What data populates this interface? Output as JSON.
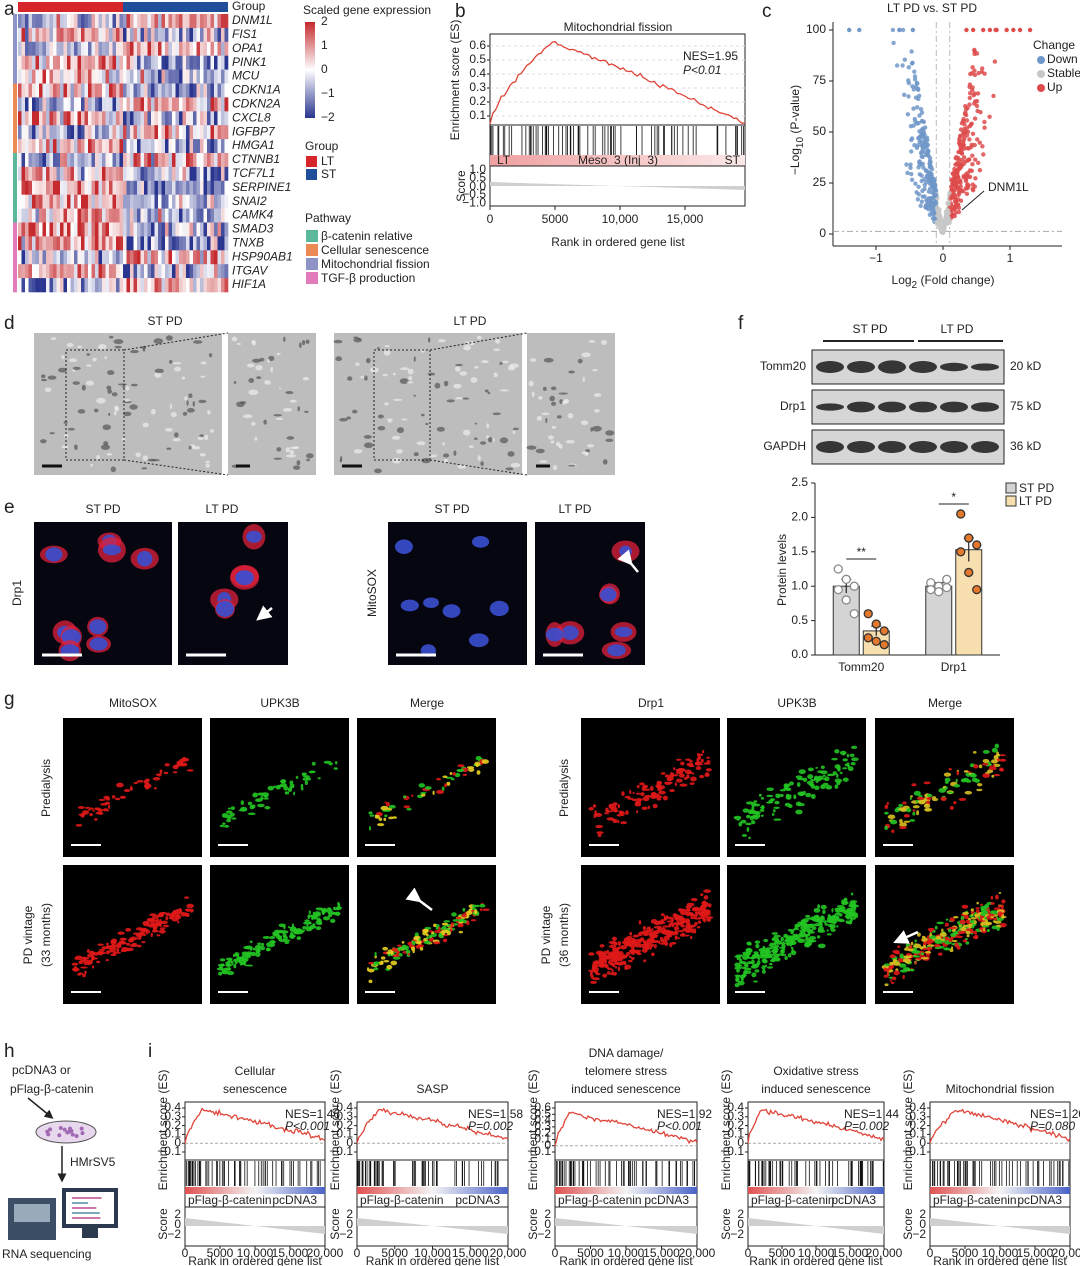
{
  "a": {
    "label": "a",
    "group_header": "Group",
    "genes": [
      "DNM1L",
      "FIS1",
      "OPA1",
      "PINK1",
      "MCU",
      "CDKN1A",
      "CDKN2A",
      "CXCL8",
      "IGFBP7",
      "HMGA1",
      "CTNNB1",
      "TCF7L1",
      "SERPINE1",
      "SNAI2",
      "CAMK4",
      "SMAD3",
      "TNXB",
      "HSP90AB1",
      "ITGAV",
      "HIF1A"
    ],
    "scale_title": "Scaled gene expression",
    "scale_ticks": [
      "2",
      "1",
      "0",
      "−1",
      "−2"
    ],
    "group_title": "Group",
    "groups": [
      {
        "name": "LT",
        "color": "#d7262a"
      },
      {
        "name": "ST",
        "color": "#1f4e9a"
      }
    ],
    "pathway_title": "Pathway",
    "pathways": [
      {
        "name": "β-catenin relative",
        "color": "#5cb89a"
      },
      {
        "name": "Cellular senescence",
        "color": "#ec8a55"
      },
      {
        "name": "Mitochondrial fission",
        "color": "#8e93c8"
      },
      {
        "name": "TGF-β production",
        "color": "#e17bb9"
      }
    ]
  },
  "b": {
    "label": "b",
    "title": "Mitochondrial fission",
    "ylabel": "Enrichment score (ES)",
    "yticks": [
      "0.6",
      "0.5",
      "0.4",
      "0.3",
      "0.2",
      "0.1"
    ],
    "nes": "NES=1.95",
    "p": "P<0.01",
    "bar_labels": [
      "LT",
      "Meso_3 (Inj_3)",
      "ST"
    ],
    "score_label": "Score",
    "score_ticks": [
      "1.0",
      "0.5",
      "0.0",
      "−0.5",
      "−1.0"
    ],
    "xticks": [
      "0",
      "5000",
      "10,000",
      "15,000"
    ],
    "xlabel": "Rank in ordered gene list"
  },
  "c": {
    "label": "c",
    "title": "LT PD vs. ST PD",
    "ylabel": [
      "−Log",
      "10",
      " (P-value)"
    ],
    "yticks": [
      "100",
      "75",
      "50",
      "25",
      "0"
    ],
    "xticks": [
      "−1",
      "0",
      "1"
    ],
    "xlabel": [
      "Log",
      "2",
      " (Fold change)"
    ],
    "legend_title": "Change",
    "legend": [
      {
        "name": "Down",
        "color": "#6f97c8"
      },
      {
        "name": "Stable",
        "color": "#c8c8c8"
      },
      {
        "name": "Up",
        "color": "#de4b4b"
      }
    ],
    "annotation": "DNM1L"
  },
  "d": {
    "label": "d",
    "titles": [
      "ST PD",
      "LT PD"
    ]
  },
  "e": {
    "label": "e",
    "titles": [
      "ST PD",
      "LT PD",
      "ST PD",
      "LT PD"
    ],
    "stains": [
      "Drp1",
      "MitoSOX"
    ]
  },
  "f": {
    "label": "f",
    "blot_groups": [
      "ST PD",
      "LT PD"
    ],
    "blots": [
      {
        "protein": "Tomm20",
        "size": "20 kD"
      },
      {
        "protein": "Drp1",
        "size": "75 kD"
      },
      {
        "protein": "GAPDH",
        "size": "36 kD"
      }
    ],
    "chart": {
      "type": "bar",
      "ylabel": "Protein levels",
      "categories": [
        "Tomm20",
        "Drp1"
      ],
      "series": [
        {
          "name": "ST PD",
          "color": "#d4d4d4",
          "point_color": "#8a8a8a",
          "values": [
            1.0,
            1.0
          ],
          "errors": [
            0.1,
            0.05
          ],
          "points": [
            [
              1.25,
              1.1,
              1.0,
              0.95,
              0.8,
              0.6
            ],
            [
              1.05,
              1.0,
              0.98,
              0.95,
              0.92,
              1.1
            ]
          ]
        },
        {
          "name": "LT PD",
          "color": "#f8dfb0",
          "point_color": "#e4782c",
          "values": [
            0.35,
            1.53
          ],
          "errors": [
            0.07,
            0.17
          ],
          "points": [
            [
              0.6,
              0.45,
              0.35,
              0.25,
              0.2,
              0.15
            ],
            [
              2.05,
              1.7,
              1.6,
              1.5,
              1.2,
              0.95
            ]
          ]
        }
      ],
      "significance": [
        "**",
        "*"
      ],
      "ylim": [
        0,
        2.5
      ],
      "yticks": [
        {
          "value": 0,
          "label": "0.0"
        },
        0.5,
        {
          "value": 1,
          "label": "1.0"
        },
        1.5,
        {
          "value": 2,
          "label": "2.0"
        },
        2.5
      ]
    }
  },
  "g": {
    "label": "g",
    "sets": [
      {
        "columns": [
          "MitoSOX",
          "UPK3B",
          "Merge"
        ],
        "rows": [
          [
            "Predialysis"
          ],
          [
            "PD vintage",
            "(33 months)"
          ]
        ]
      },
      {
        "columns": [
          "Drp1",
          "UPK3B",
          "Merge"
        ],
        "rows": [
          [
            "Predialysis"
          ],
          [
            "PD vintage",
            "(36 months)"
          ]
        ]
      }
    ]
  },
  "h": {
    "label": "h",
    "vectors": [
      "pcDNA3 or",
      "pFlag-β-catenin"
    ],
    "cell_line": "HMrSV5",
    "assay": "RNA sequencing"
  },
  "i": {
    "label": "i",
    "ylabel": "Enrichment score (ES)",
    "score_label": "Score",
    "score_ticks": [
      "2",
      "0",
      "−2"
    ],
    "xticks": [
      "0",
      "5000",
      "10,000",
      "15,000",
      "20,000"
    ],
    "xlabel": "Rank in ordered gene list",
    "left_label": "pFlag-β-catenin",
    "right_label": "pcDNA3",
    "panels": [
      {
        "title": [
          "Cellular",
          "senescence"
        ],
        "yticks": [
          "0.4",
          "0.3",
          "0.2",
          "0.1",
          "0",
          "−0.1"
        ],
        "nes": "NES=1.46",
        "p": "P<0.001"
      },
      {
        "title": [
          "SASP"
        ],
        "yticks": [
          "0.4",
          "0.3",
          "0.2",
          "0.1",
          "0",
          "−0.1"
        ],
        "nes": "NES=1.58",
        "p": "P=0.002"
      },
      {
        "title": [
          "DNA damage/",
          "telomere stress",
          "induced senescence"
        ],
        "yticks": [
          "0.6",
          "0.5",
          "0.4",
          "0.3",
          "0.2",
          "0.1",
          "0",
          "−0.1"
        ],
        "nes": "NES=1.92",
        "p": "P<0.001"
      },
      {
        "title": [
          "Oxidative stress",
          "induced senescence"
        ],
        "yticks": [
          "0.4",
          "0.3",
          "0.2",
          "0.1",
          "0",
          "−0.1"
        ],
        "nes": "NES=1.44",
        "p": "P=0.002"
      },
      {
        "title": [
          "Mitochondrial fission"
        ],
        "yticks": [
          "0.4",
          "0.3",
          "0.2",
          "0.1",
          "0",
          "−0.1"
        ],
        "nes": "NES=1.20",
        "p": "P=0.080"
      }
    ]
  }
}
